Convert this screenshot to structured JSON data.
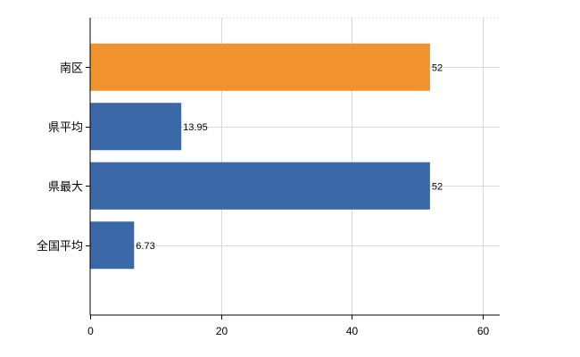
{
  "chart_data": {
    "type": "bar",
    "orientation": "horizontal",
    "title": "",
    "xlabel": "",
    "ylabel": "",
    "categories": [
      "南区",
      "県平均",
      "県最大",
      "全国平均"
    ],
    "values": [
      52,
      13.95,
      52,
      6.73
    ],
    "data_labels": [
      "52",
      "13.95",
      "52",
      "6.73"
    ],
    "bar_colors": [
      "#f0922e",
      "#3b69a8",
      "#3b69a8",
      "#3b69a8"
    ],
    "xlim": [
      0,
      62.5
    ],
    "x_ticks": [
      0,
      20,
      40,
      60
    ],
    "x_tick_labels": [
      "0",
      "20",
      "40",
      "60"
    ],
    "grid": true,
    "legend": "none"
  }
}
